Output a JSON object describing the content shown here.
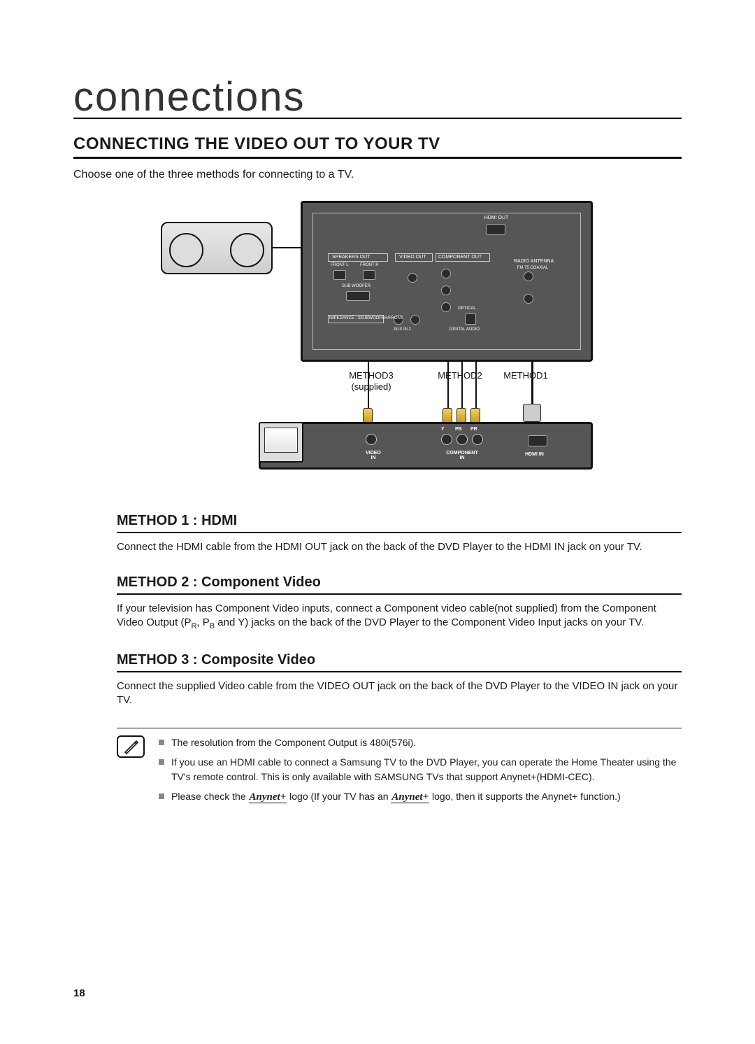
{
  "page": {
    "title": "connections",
    "section_heading": "CONNECTING THE VIDEO OUT TO YOUR TV",
    "intro": "Choose one of the three methods for connecting to a TV.",
    "page_number": "18"
  },
  "diagram": {
    "rear_panel": {
      "hdmi_out": "HDMI OUT",
      "speakers_out": "SPEAKERS OUT",
      "video_out": "VIDEO OUT",
      "component_out": "COMPONENT OUT",
      "radio_antenna": "RADIO ANTENNA",
      "front_l": "FRONT L",
      "front_r": "FRONT R",
      "sub_woofer": "SUB WOOFER",
      "aux_in2": "AUX IN 2",
      "digital_audio": "DIGITAL AUDIO",
      "optical": "OPTICAL",
      "fm_coaxial": "FM 75 COAXIAL",
      "impedance": "IMPEDANCE : 3SUBWOOFER/FRONT"
    },
    "method_labels": {
      "m1": "METHOD1",
      "m2": "METHOD2",
      "m3_line1": "METHOD3",
      "m3_line2": "(supplied)"
    },
    "tv_panel": {
      "video_in": "VIDEO\nIN",
      "component_in": "COMPONENT\nIN",
      "hdmi_in": "HDMI IN",
      "pr": "PR",
      "pb": "PB",
      "y": "Y"
    }
  },
  "methods": [
    {
      "title": "METHOD 1 : HDMI",
      "body": "Connect the HDMI cable from the HDMI OUT jack on the back of the DVD Player to the HDMI IN jack on your TV."
    },
    {
      "title": "METHOD 2 : Component Video",
      "body_html": true,
      "body": "If your television has Component Video inputs, connect a Component video cable(not supplied) from the Component Video Output (PR, PB and Y) jacks on the back of the DVD Player to the Component Video Input jacks on your TV.",
      "subs": [
        "R",
        "B"
      ]
    },
    {
      "title": "METHOD 3 : Composite Video",
      "body": "Connect the supplied Video cable from the VIDEO OUT jack on the back of the DVD Player to the VIDEO IN jack on your TV."
    }
  ],
  "notes": {
    "items": [
      "The resolution from the Component Output is 480i(576i).",
      "If you use an HDMI cable to connect a Samsung TV to the DVD Player, you can operate the Home Theater using the TV's remote control. This is only available with SAMSUNG TVs that support Anynet+(HDMI-CEC).",
      "Please check the  Anynet+  logo (If your TV has an  Anynet+  logo, then it supports the Anynet+ function.)"
    ],
    "anynet_label": "Anynet+"
  },
  "colors": {
    "text": "#1a1a1a",
    "rule": "#111111",
    "panel_bg": "#565656",
    "plug_gold_top": "#f5d060",
    "plug_gold_bottom": "#c89a20",
    "note_bullet": "#888888",
    "background": "#ffffff"
  },
  "typography": {
    "title_fontsize": 58,
    "section_heading_fontsize": 24,
    "method_title_fontsize": 20,
    "body_fontsize": 15,
    "notes_fontsize": 14,
    "diagram_label_fontsize": 13,
    "panel_label_fontsize": 7
  }
}
